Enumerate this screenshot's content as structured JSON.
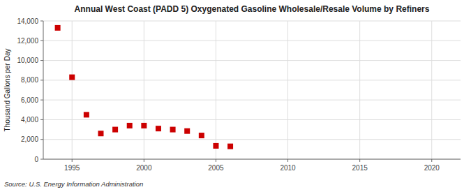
{
  "chart_data": {
    "type": "scatter",
    "title": "Annual West Coast (PADD 5) Oxygenated Gasoline Wholesale/Resale Volume by Refiners",
    "y_label": "Thousand Gallons per Day",
    "source": "Source: U.S. Energy Information Administration",
    "x": [
      1994,
      1995,
      1996,
      1997,
      1998,
      1999,
      2000,
      2001,
      2002,
      2003,
      2004,
      2005,
      2006
    ],
    "values": [
      13300,
      8300,
      4500,
      2600,
      3000,
      3400,
      3400,
      3100,
      3000,
      2850,
      2400,
      1350,
      1300
    ],
    "color": "#cc0000",
    "marker": "square",
    "xlim": [
      1993,
      2022
    ],
    "xticks": [
      1995,
      2000,
      2005,
      2010,
      2015,
      2020
    ],
    "ylim": [
      0,
      14000
    ],
    "yticks": [
      0,
      {
        "value": 2000,
        "label": "2,000"
      },
      {
        "value": 4000,
        "label": "4,000"
      },
      {
        "value": 6000,
        "label": "6,000"
      },
      {
        "value": 8000,
        "label": "8,000"
      },
      {
        "value": 10000,
        "label": "10,000"
      },
      {
        "value": 12000,
        "label": "12,000"
      },
      {
        "value": 14000,
        "label": "14,000"
      }
    ],
    "grid": true
  }
}
